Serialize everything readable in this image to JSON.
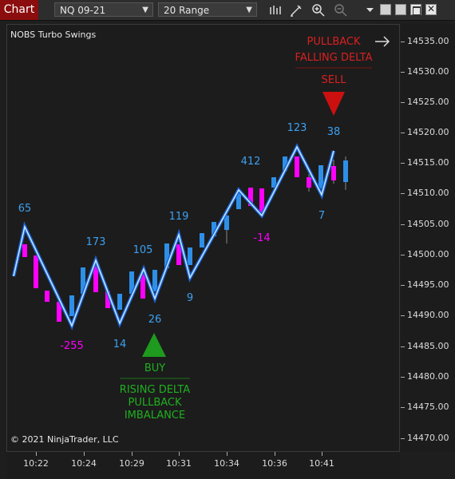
{
  "toolbar": {
    "tab_label": "Chart",
    "instrument": "NQ 09-21",
    "bar_type": "20 Range",
    "icons": [
      "bar-chart-icon",
      "pencil-draw-icon",
      "zoom-in-icon",
      "zoom-out-icon",
      "dropdown-menu-icon"
    ],
    "window_buttons": [
      "minimize",
      "restore",
      "maximize",
      "close"
    ]
  },
  "chart": {
    "indicator_name": "NOBS Turbo Swings",
    "copyright": "© 2021 NinjaTrader, LLC",
    "y_ticks": [
      "14535.00",
      "14530.00",
      "14525.00",
      "14520.00",
      "14515.00",
      "14510.00",
      "14505.00",
      "14500.00",
      "14495.00",
      "14490.00",
      "14485.00",
      "14480.00",
      "14475.00",
      "14470.00"
    ],
    "x_ticks": [
      "10:22",
      "10:24",
      "10:29",
      "10:31",
      "10:34",
      "10:36",
      "10:41"
    ],
    "swing_labels": [
      {
        "text": "65",
        "color": "blue"
      },
      {
        "text": "-255",
        "color": "mag"
      },
      {
        "text": "173",
        "color": "blue"
      },
      {
        "text": "14",
        "color": "blue"
      },
      {
        "text": "105",
        "color": "blue"
      },
      {
        "text": "26",
        "color": "blue"
      },
      {
        "text": "119",
        "color": "blue"
      },
      {
        "text": "9",
        "color": "blue"
      },
      {
        "text": "412",
        "color": "blue"
      },
      {
        "text": "-14",
        "color": "mag"
      },
      {
        "text": "123",
        "color": "blue"
      },
      {
        "text": "7",
        "color": "blue"
      },
      {
        "text": "38",
        "color": "blue"
      }
    ],
    "buy_signal": {
      "label": "BUY",
      "lines": [
        "RISING DELTA",
        "PULLBACK",
        "IMBALANCE"
      ],
      "color": "#1fb01f"
    },
    "sell_signal": {
      "lines": [
        "PULLBACK",
        "FALLING DELTA"
      ],
      "label": "SELL",
      "color": "#d92020"
    },
    "colors": {
      "up_bar": "#2e8fe8",
      "down_bar": "#ff00ff",
      "swing_line": "#5ab8ff",
      "background": "#1c1c1c"
    }
  }
}
